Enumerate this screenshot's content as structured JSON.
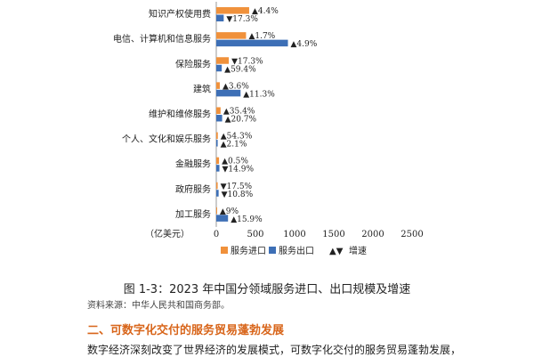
{
  "chart_data": {
    "type": "bar",
    "orientation": "horizontal",
    "unit": "（亿美元）",
    "categories": [
      "知识产权使用费",
      "电信、计算机和信息服务",
      "保险服务",
      "建筑",
      "维护和维修服务",
      "个人、文化和娱乐服务",
      "金融服务",
      "政府服务",
      "加工服务"
    ],
    "series": [
      {
        "name": "服务进口",
        "color": "#f0913b",
        "values": [
          420,
          380,
          160,
          45,
          55,
          20,
          35,
          18,
          10
        ]
      },
      {
        "name": "服务出口",
        "color": "#3d6fb6",
        "values": [
          95,
          915,
          70,
          310,
          75,
          18,
          40,
          30,
          150
        ]
      }
    ],
    "growth_labels": {
      "import": [
        "▲4.4%",
        "▲1.7%",
        "▼17.3%",
        "▲3.6%",
        "▲35.4%",
        "▲54.3%",
        "▲0.5%",
        "▼17.5%",
        "▲9%"
      ],
      "export": [
        "▼17.3%",
        "▲4.9%",
        "▲59.4%",
        "▲11.3%",
        "▲20.7%",
        "▲2.1%",
        "▼14.9%",
        "▼10.8%",
        "▲15.9%"
      ]
    },
    "xlim": [
      0,
      2500
    ],
    "xticks": [
      0,
      500,
      1000,
      1500,
      2000,
      2500
    ],
    "legend": {
      "import": "服务进口",
      "export": "服务出口",
      "growth": "增速",
      "growth_symbol": "▲▼",
      "placement": "bottom"
    }
  },
  "caption": "图 1-3：2023 年中国分领域服务进口、出口规模及增速",
  "source": "资料来源：中华人民共和国商务部。",
  "section_title": "二、可数字化交付的服务贸易蓬勃发展",
  "body_text": "数字经济深刻改变了世界经济的发展模式，可数字化交付的服务贸易蓬勃发展，"
}
